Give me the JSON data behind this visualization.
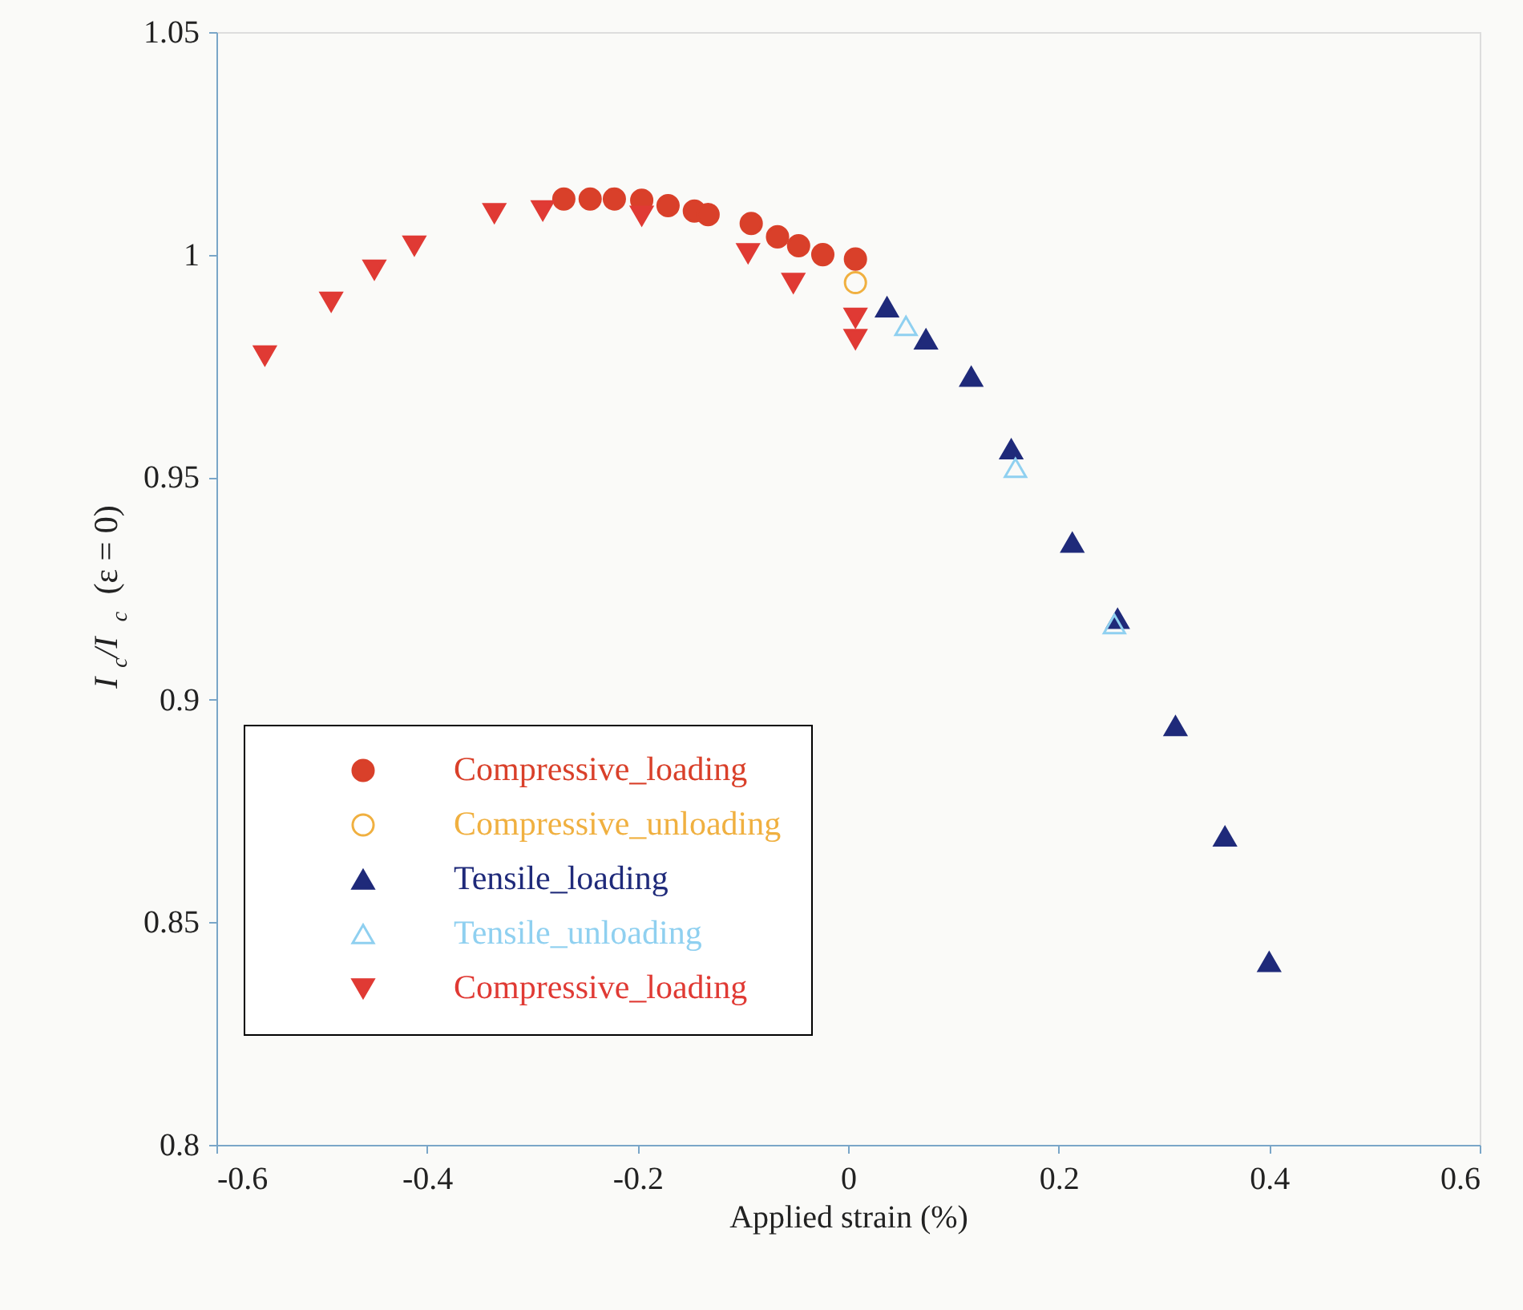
{
  "chart_data": {
    "type": "scatter",
    "xlabel": "Applied strain (%)",
    "ylabel": "I$_{c}$/I$_{c}$ (ε = 0)",
    "xlim": [
      -0.6,
      0.6
    ],
    "xticks": [
      -0.6,
      -0.4,
      -0.2,
      0,
      0.2,
      0.4,
      0.6
    ],
    "ylim": [
      0.8,
      1.05
    ],
    "yticks": [
      0.8,
      0.85,
      0.9,
      0.95,
      1,
      1.05
    ],
    "grid": false,
    "legend": "bottom left",
    "series": [
      {
        "name": "Compressive_loading",
        "color": "#d9402a",
        "marker": "circle",
        "x": [
          -0.27,
          -0.245,
          -0.222,
          -0.196,
          -0.171,
          -0.146,
          -0.133,
          -0.092,
          -0.067,
          -0.047,
          -0.024,
          0.007
        ],
        "values": [
          1.0125,
          1.0125,
          1.0125,
          1.0122,
          1.011,
          1.0098,
          1.009,
          1.007,
          1.004,
          1.002,
          1.0,
          0.999
        ]
      },
      {
        "name": "Compressive_unloading",
        "color": "#f0b040",
        "marker": "circle-open",
        "x": [
          0.007
        ],
        "values": [
          0.9937
        ]
      },
      {
        "name": "Tensile_loading",
        "color": "#1f2a7a",
        "marker": "triangle",
        "x": [
          0.037,
          0.074,
          0.117,
          0.155,
          0.213,
          0.256,
          0.311,
          0.358,
          0.4
        ],
        "values": [
          0.9882,
          0.981,
          0.9726,
          0.9563,
          0.9353,
          0.9182,
          0.8941,
          0.8693,
          0.8411
        ]
      },
      {
        "name": "Tensile_unloading",
        "color": "#8fd0f0",
        "marker": "triangle-open",
        "x": [
          0.055,
          0.159,
          0.253
        ],
        "values": [
          0.984,
          0.9521,
          0.917
        ]
      },
      {
        "name": "Compressive_loading",
        "color": "#e03a34",
        "marker": "triangle-down",
        "x": [
          -0.554,
          -0.491,
          -0.45,
          -0.412,
          -0.336,
          -0.29,
          -0.196,
          -0.095,
          -0.052,
          0.007,
          0.007
        ],
        "values": [
          0.9773,
          0.9894,
          0.9966,
          1.002,
          1.0093,
          1.0099,
          1.0087,
          1.0003,
          0.9936,
          0.9858,
          0.981
        ]
      }
    ]
  }
}
